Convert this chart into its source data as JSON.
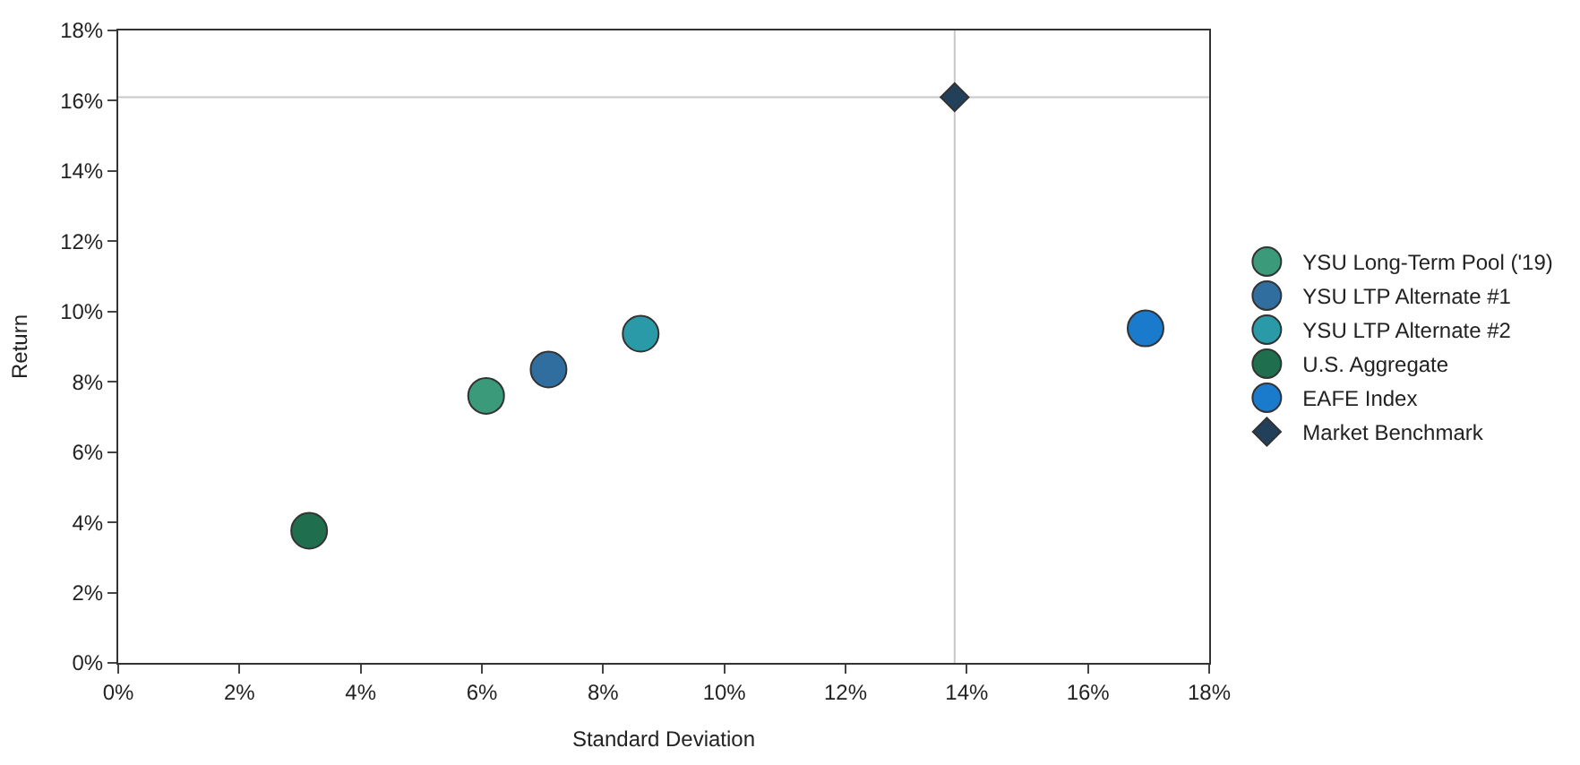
{
  "chart_data": {
    "type": "scatter",
    "xlabel": "Standard Deviation",
    "ylabel": "Return",
    "xlim": [
      0,
      18
    ],
    "ylim": [
      0,
      18
    ],
    "xticks": [
      {
        "value": 0,
        "label": "0%"
      },
      {
        "value": 2,
        "label": "2%"
      },
      {
        "value": 4,
        "label": "4%"
      },
      {
        "value": 6,
        "label": "6%"
      },
      {
        "value": 8,
        "label": "8%"
      },
      {
        "value": 10,
        "label": "10%"
      },
      {
        "value": 12,
        "label": "12%"
      },
      {
        "value": 14,
        "label": "14%"
      },
      {
        "value": 16,
        "label": "16%"
      },
      {
        "value": 18,
        "label": "18%"
      }
    ],
    "yticks": [
      {
        "value": 0,
        "label": "0%"
      },
      {
        "value": 2,
        "label": "2%"
      },
      {
        "value": 4,
        "label": "4%"
      },
      {
        "value": 6,
        "label": "6%"
      },
      {
        "value": 8,
        "label": "8%"
      },
      {
        "value": 10,
        "label": "10%"
      },
      {
        "value": 12,
        "label": "12%"
      },
      {
        "value": 14,
        "label": "14%"
      },
      {
        "value": 16,
        "label": "16%"
      },
      {
        "value": 18,
        "label": "18%"
      }
    ],
    "grid": false,
    "legend": "right",
    "ref_lines": [
      {
        "axis": "x",
        "value": 13.8,
        "label": null,
        "color": "#c8c8c8"
      },
      {
        "axis": "y",
        "value": 16.1,
        "label": null,
        "color": "#c8c8c8"
      }
    ],
    "series": [
      {
        "name": "YSU Long-Term Pool ('19)",
        "color": "#3a9a7a",
        "marker": "circle",
        "x": [
          6.07
        ],
        "values": [
          7.6
        ]
      },
      {
        "name": "YSU LTP Alternate #1",
        "color": "#2f6e9e",
        "marker": "circle",
        "x": [
          7.1
        ],
        "values": [
          8.35
        ]
      },
      {
        "name": "YSU LTP Alternate #2",
        "color": "#2a9aa8",
        "marker": "circle",
        "x": [
          8.62
        ],
        "values": [
          9.37
        ]
      },
      {
        "name": "U.S. Aggregate",
        "color": "#1f6e4e",
        "marker": "circle",
        "x": [
          3.15
        ],
        "values": [
          3.76
        ]
      },
      {
        "name": "EAFE Index",
        "color": "#1a7acc",
        "marker": "circle",
        "x": [
          16.95
        ],
        "values": [
          9.52
        ]
      },
      {
        "name": "Market Benchmark",
        "color": "#23405a",
        "marker": "diamond",
        "x": [
          13.8
        ],
        "values": [
          16.1
        ]
      }
    ]
  }
}
